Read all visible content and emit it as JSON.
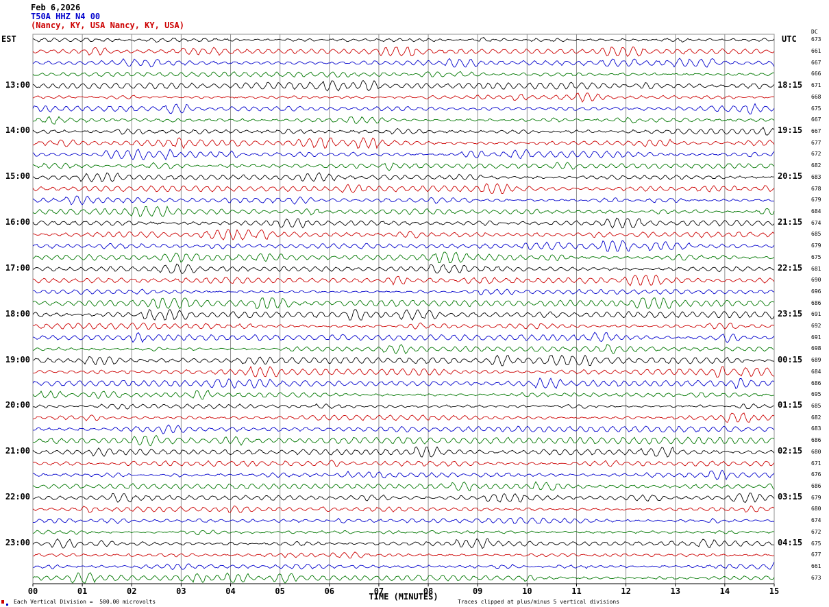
{
  "header": {
    "date": "Feb 6,2026",
    "station": "T50A HHZ N4 00",
    "location": "(Nancy, KY, USA Nancy, KY, USA)"
  },
  "footer": {
    "scale_note": "Each Vertical Division =  500.00 microvolts",
    "clip_note": "Traces clipped at plus/minus 5 vertical divisions"
  },
  "chart_data": {
    "type": "line",
    "subtype": "seismogram-helicorder",
    "title": "T50A HHZ N4 00 (Nancy, KY, USA) Feb 6,2026",
    "xlabel": "TIME (MINUTES)",
    "x_range_minutes": [
      0,
      15
    ],
    "x_ticks": [
      "00",
      "01",
      "02",
      "03",
      "04",
      "05",
      "06",
      "07",
      "08",
      "09",
      "10",
      "11",
      "12",
      "13",
      "14",
      "15"
    ],
    "rows": 48,
    "minutes_per_row": 15,
    "first_row_start_est": "12:00",
    "grid": true,
    "trace_colors": [
      "#000000",
      "#cc0000",
      "#0000cc",
      "#007700"
    ],
    "left_axis": {
      "label": "EST",
      "tick_rows": [
        4,
        8,
        12,
        16,
        20,
        24,
        28,
        32,
        36,
        40,
        44
      ],
      "tick_labels": [
        "13:00",
        "14:00",
        "15:00",
        "16:00",
        "17:00",
        "18:00",
        "19:00",
        "20:00",
        "21:00",
        "22:00",
        "23:00"
      ]
    },
    "right_axis": {
      "label": "UTC",
      "tick_rows": [
        4,
        8,
        12,
        16,
        20,
        24,
        28,
        32,
        36,
        40,
        44
      ],
      "tick_labels": [
        "18:15",
        "19:15",
        "20:15",
        "21:15",
        "22:15",
        "23:15",
        "00:15",
        "01:15",
        "02:15",
        "03:15",
        "04:15"
      ]
    },
    "dc_axis": {
      "label": "DC",
      "values": [
        673,
        661,
        667,
        666,
        671,
        668,
        675,
        667,
        667,
        677,
        672,
        682,
        683,
        678,
        679,
        684,
        674,
        685,
        679,
        675,
        681,
        690,
        696,
        686,
        691,
        692,
        691,
        698,
        689,
        684,
        686,
        695,
        685,
        682,
        683,
        686,
        680,
        671,
        676,
        686,
        679,
        680,
        674,
        672,
        675,
        677,
        661,
        673
      ]
    },
    "scale_note": "Each Vertical Division = 500.00 microvolts",
    "clip_note": "Traces clipped at plus/minus 5 vertical divisions",
    "waveform_note": "Continuous microseismic noise traces; individual sample values are not readable from the image and are rendered procedurally."
  }
}
